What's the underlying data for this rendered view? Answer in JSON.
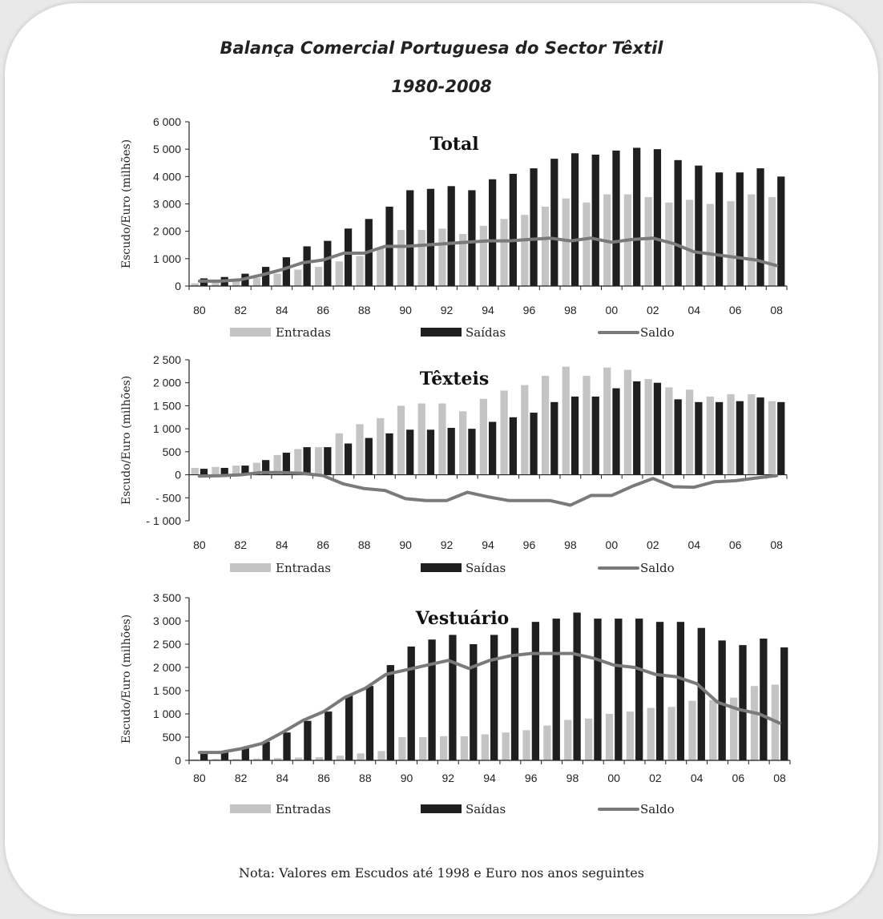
{
  "title": "Balança Comercial Portuguesa do Sector Têxtil",
  "subtitle": "1980-2008",
  "note": "Nota: Valores em Escudos até 1998 e Euro nos anos seguintes",
  "colors": {
    "entradas": "#c4c4c4",
    "saidas": "#1f1f1f",
    "saldo": "#7a7a7a"
  },
  "chart_data": [
    {
      "type": "bar",
      "title": "Total",
      "ylabel": "Escudo/Euro (milhões)",
      "ylim": [
        0,
        6000
      ],
      "yticks": [
        0,
        1000,
        2000,
        3000,
        4000,
        5000,
        6000
      ],
      "ytick_labels": [
        "0",
        "1 000",
        "2 000",
        "3 000",
        "4 000",
        "5 000",
        "6 000"
      ],
      "x_tick_labels": [
        "80",
        "82",
        "84",
        "86",
        "88",
        "90",
        "92",
        "94",
        "96",
        "98",
        "00",
        "02",
        "04",
        "06",
        "08"
      ],
      "categories": [
        "1980",
        "1981",
        "1982",
        "1983",
        "1984",
        "1985",
        "1986",
        "1987",
        "1988",
        "1989",
        "1990",
        "1991",
        "1992",
        "1993",
        "1994",
        "1995",
        "1996",
        "1997",
        "1998",
        "1999",
        "2000",
        "2001",
        "2002",
        "2003",
        "2004",
        "2005",
        "2006",
        "2007",
        "2008"
      ],
      "legend_position": "bottom",
      "series": [
        {
          "name": "Entradas",
          "type": "bar",
          "values": [
            100,
            150,
            220,
            300,
            450,
            600,
            700,
            900,
            1100,
            1400,
            2050,
            2050,
            2100,
            1900,
            2200,
            2450,
            2600,
            2900,
            3200,
            3050,
            3350,
            3350,
            3250,
            3050,
            3150,
            3000,
            3100,
            3350,
            3250
          ]
        },
        {
          "name": "Saídas",
          "type": "bar",
          "values": [
            280,
            330,
            450,
            700,
            1050,
            1450,
            1650,
            2100,
            2450,
            2900,
            3500,
            3550,
            3650,
            3500,
            3900,
            4100,
            4300,
            4650,
            4850,
            4800,
            4950,
            5050,
            5000,
            4600,
            4400,
            4150,
            4150,
            4300,
            4000
          ]
        },
        {
          "name": "Saldo",
          "type": "line",
          "values": [
            180,
            180,
            230,
            400,
            600,
            850,
            950,
            1200,
            1200,
            1450,
            1450,
            1500,
            1550,
            1600,
            1650,
            1650,
            1700,
            1750,
            1650,
            1750,
            1600,
            1700,
            1750,
            1550,
            1250,
            1150,
            1050,
            950,
            750
          ]
        }
      ]
    },
    {
      "type": "bar",
      "title": "Têxteis",
      "ylabel": "Escudo/Euro (milhões)",
      "ylim": [
        -1000,
        2500
      ],
      "yticks": [
        -1000,
        -500,
        0,
        500,
        1000,
        1500,
        2000,
        2500
      ],
      "ytick_labels": [
        "- 1 000",
        "- 500",
        "0",
        "500",
        "1 000",
        "1 500",
        "2 000",
        "2 500"
      ],
      "x_tick_labels": [
        "80",
        "82",
        "84",
        "86",
        "88",
        "90",
        "92",
        "94",
        "96",
        "98",
        "00",
        "02",
        "04",
        "06",
        "08"
      ],
      "categories": [
        "1980",
        "1981",
        "1982",
        "1983",
        "1984",
        "1985",
        "1986",
        "1987",
        "1988",
        "1989",
        "1990",
        "1991",
        "1992",
        "1993",
        "1994",
        "1995",
        "1996",
        "1997",
        "1998",
        "1999",
        "2000",
        "2001",
        "2002",
        "2003",
        "2004",
        "2005",
        "2006",
        "2007",
        "2008"
      ],
      "legend_position": "bottom",
      "series": [
        {
          "name": "Entradas",
          "type": "bar",
          "values": [
            150,
            170,
            200,
            260,
            430,
            560,
            600,
            900,
            1100,
            1230,
            1500,
            1550,
            1550,
            1380,
            1650,
            1830,
            1950,
            2150,
            2350,
            2150,
            2330,
            2280,
            2080,
            1900,
            1850,
            1700,
            1750,
            1750,
            1600
          ]
        },
        {
          "name": "Saídas",
          "type": "bar",
          "values": [
            130,
            150,
            200,
            320,
            480,
            600,
            600,
            680,
            800,
            900,
            980,
            980,
            1020,
            1000,
            1150,
            1250,
            1350,
            1580,
            1700,
            1700,
            1880,
            2030,
            2000,
            1640,
            1580,
            1580,
            1600,
            1680,
            1580
          ]
        },
        {
          "name": "Saldo",
          "type": "line",
          "values": [
            -30,
            -20,
            0,
            50,
            50,
            30,
            -20,
            -200,
            -300,
            -340,
            -520,
            -560,
            -560,
            -380,
            -480,
            -560,
            -560,
            -560,
            -660,
            -450,
            -450,
            -250,
            -80,
            -260,
            -270,
            -150,
            -130,
            -70,
            -20
          ]
        }
      ]
    },
    {
      "type": "bar",
      "title": "Vestuário",
      "ylabel": "Escudo/Euro (milhões)",
      "ylim": [
        0,
        3500
      ],
      "yticks": [
        0,
        500,
        1000,
        1500,
        2000,
        2500,
        3000,
        3500
      ],
      "ytick_labels": [
        "0",
        "500",
        "1 000",
        "1 500",
        "2 000",
        "2 500",
        "3 000",
        "3 500"
      ],
      "x_tick_labels": [
        "80",
        "82",
        "84",
        "86",
        "88",
        "90",
        "92",
        "94",
        "96",
        "98",
        "00",
        "02",
        "04",
        "06",
        "08"
      ],
      "categories": [
        "1980",
        "1981",
        "1982",
        "1983",
        "1984",
        "1985",
        "1986",
        "1987",
        "1988",
        "1989",
        "1990",
        "1991",
        "1992",
        "1993",
        "1994",
        "1995",
        "1996",
        "1997",
        "1998",
        "1999",
        "2000",
        "2001",
        "2002",
        "2003",
        "2004",
        "2005",
        "2006",
        "2007",
        "2008"
      ],
      "legend_position": "bottom",
      "series": [
        {
          "name": "Entradas",
          "type": "bar",
          "values": [
            20,
            30,
            30,
            40,
            50,
            60,
            70,
            100,
            150,
            200,
            500,
            500,
            520,
            520,
            560,
            600,
            650,
            750,
            870,
            900,
            1000,
            1050,
            1130,
            1150,
            1280,
            1300,
            1350,
            1600,
            1630
          ]
        },
        {
          "name": "Saídas",
          "type": "bar",
          "values": [
            150,
            200,
            280,
            400,
            600,
            850,
            1050,
            1400,
            1600,
            2050,
            2450,
            2600,
            2700,
            2500,
            2700,
            2850,
            2980,
            3050,
            3180,
            3050,
            3050,
            3050,
            2980,
            2980,
            2850,
            2580,
            2480,
            2620,
            2430
          ]
        },
        {
          "name": "Saldo",
          "type": "line",
          "values": [
            170,
            170,
            250,
            360,
            600,
            860,
            1050,
            1350,
            1550,
            1850,
            1950,
            2050,
            2150,
            1980,
            2150,
            2250,
            2300,
            2300,
            2300,
            2200,
            2050,
            2000,
            1850,
            1800,
            1650,
            1250,
            1100,
            1000,
            800
          ]
        }
      ]
    }
  ]
}
